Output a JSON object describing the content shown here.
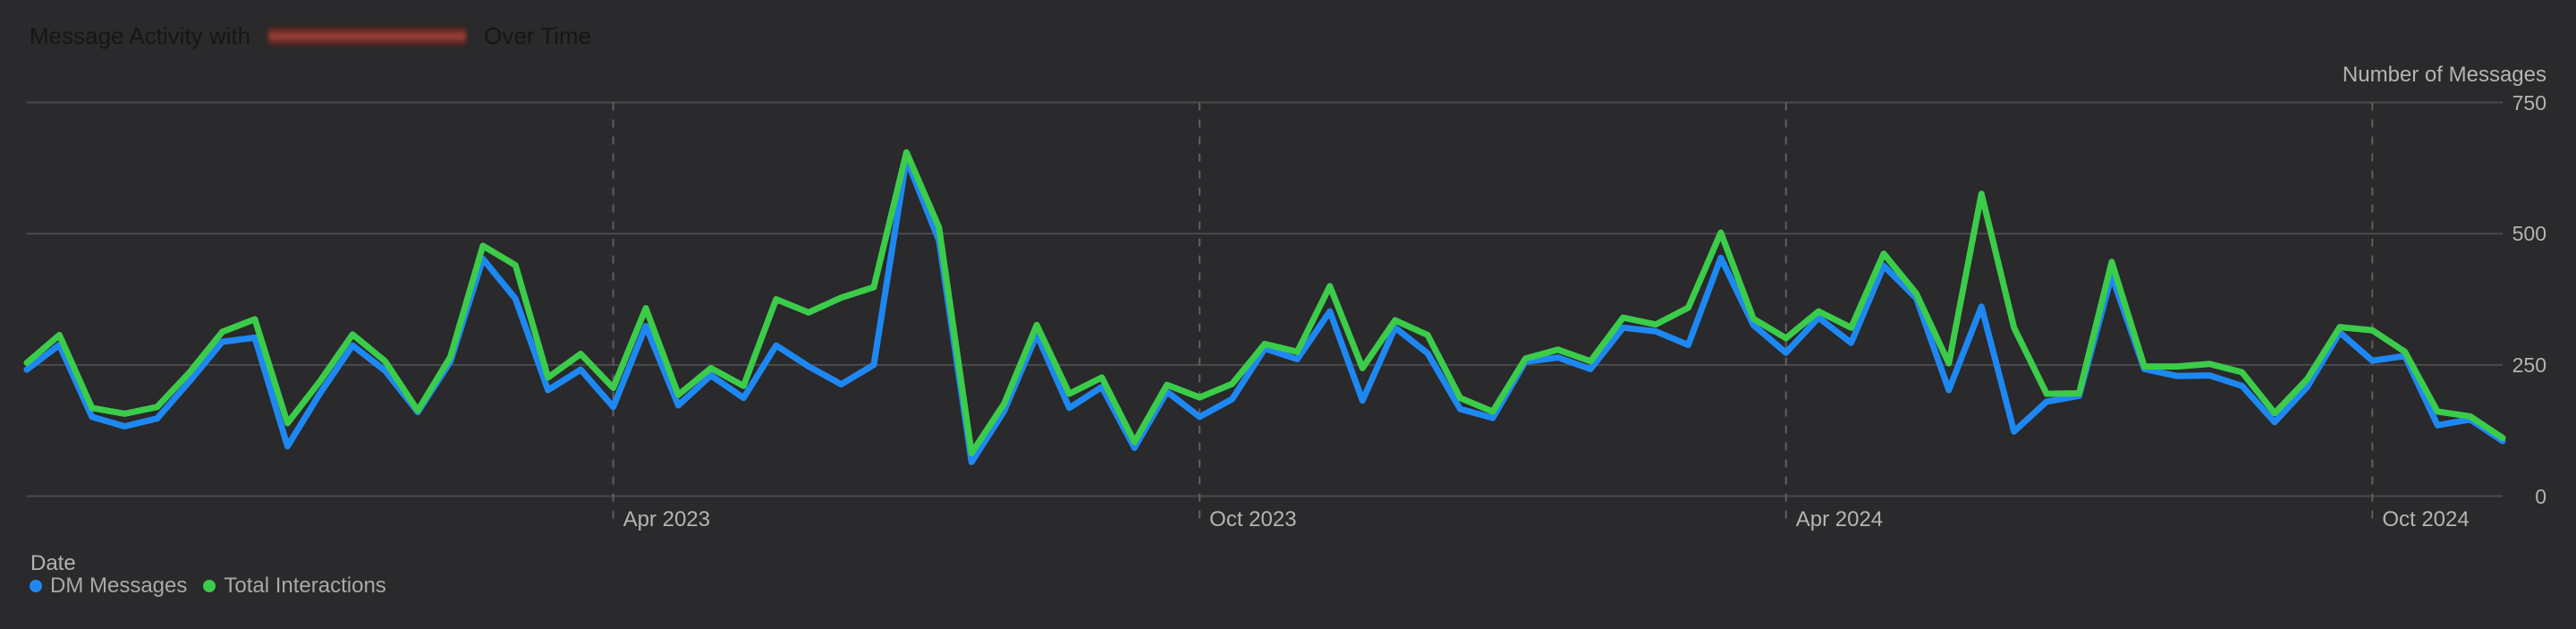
{
  "title": {
    "prefix": "Message Activity with",
    "redacted": true,
    "suffix": "Over Time"
  },
  "y_axis": {
    "label": "Number of Messages",
    "ticks": [
      750,
      500,
      250,
      0
    ],
    "position": "right"
  },
  "x_axis": {
    "label": "Date",
    "ticks": [
      {
        "label": "Apr 2023",
        "index": 18
      },
      {
        "label": "Oct 2023",
        "index": 36
      },
      {
        "label": "Apr 2024",
        "index": 54
      },
      {
        "label": "Oct 2024",
        "index": 72
      }
    ]
  },
  "legend": [
    {
      "label": "DM Messages",
      "color": "#1e88f2"
    },
    {
      "label": "Total Interactions",
      "color": "#3bcc4a"
    }
  ],
  "colors": {
    "background": "#2a292b",
    "gridline": "#4b4b4d",
    "dashed_gridline": "#5f5f61",
    "tick_text": "#b4b4b4",
    "legend_text": "#a9a9a9",
    "title_text": "#161616",
    "redaction_red": "#a0443a",
    "dm_blue": "#1e88f2",
    "interactions_green": "#3bcc4a"
  },
  "chart_data": {
    "type": "line",
    "title": "Message Activity with [redacted] Over Time",
    "xlabel": "Date",
    "ylabel": "Number of Messages",
    "ylim": [
      0,
      750
    ],
    "grid": "horizontal solid lines at 0/250/500/750; dashed vertical lines at Apr/Oct month boundaries",
    "legend_position": "bottom-left",
    "x": [
      "2022-10-01",
      "2022-10-11",
      "2022-10-21",
      "2022-11-01",
      "2022-11-11",
      "2022-11-21",
      "2022-12-01",
      "2022-12-11",
      "2022-12-21",
      "2023-01-01",
      "2023-01-11",
      "2023-01-21",
      "2023-02-01",
      "2023-02-11",
      "2023-02-21",
      "2023-03-01",
      "2023-03-11",
      "2023-03-21",
      "2023-04-01",
      "2023-04-11",
      "2023-04-21",
      "2023-05-01",
      "2023-05-11",
      "2023-05-21",
      "2023-06-01",
      "2023-06-11",
      "2023-06-21",
      "2023-07-01",
      "2023-07-11",
      "2023-07-21",
      "2023-08-01",
      "2023-08-11",
      "2023-08-21",
      "2023-09-01",
      "2023-09-11",
      "2023-09-21",
      "2023-10-01",
      "2023-10-11",
      "2023-10-21",
      "2023-11-01",
      "2023-11-11",
      "2023-11-21",
      "2023-12-01",
      "2023-12-11",
      "2023-12-21",
      "2024-01-01",
      "2024-01-11",
      "2024-01-21",
      "2024-02-01",
      "2024-02-11",
      "2024-02-21",
      "2024-03-01",
      "2024-03-11",
      "2024-03-21",
      "2024-04-01",
      "2024-04-11",
      "2024-04-21",
      "2024-05-01",
      "2024-05-11",
      "2024-05-21",
      "2024-06-01",
      "2024-06-11",
      "2024-06-21",
      "2024-07-01",
      "2024-07-11",
      "2024-07-21",
      "2024-08-01",
      "2024-08-11",
      "2024-08-21",
      "2024-09-01",
      "2024-09-11",
      "2024-09-21",
      "2024-10-01",
      "2024-10-11",
      "2024-10-21",
      "2024-11-01",
      "2024-11-11"
    ],
    "series": [
      {
        "name": "DM Messages",
        "color": "#1e88f2",
        "values": [
          241,
          288,
          151,
          133,
          148,
          219,
          294,
          302,
          95,
          196,
          287,
          239,
          160,
          256,
          452,
          376,
          202,
          241,
          170,
          324,
          173,
          230,
          187,
          287,
          247,
          213,
          250,
          642,
          487,
          65,
          162,
          308,
          168,
          208,
          92,
          199,
          151,
          185,
          281,
          261,
          352,
          182,
          321,
          272,
          166,
          149,
          256,
          264,
          242,
          321,
          314,
          288,
          454,
          326,
          273,
          340,
          292,
          439,
          377,
          202,
          361,
          123,
          180,
          191,
          420,
          242,
          229,
          230,
          210,
          141,
          208,
          312,
          258,
          267,
          135,
          146,
          105
        ]
      },
      {
        "name": "Total Interactions",
        "color": "#3bcc4a",
        "values": [
          254,
          307,
          168,
          157,
          170,
          236,
          313,
          337,
          139,
          219,
          308,
          257,
          163,
          265,
          477,
          440,
          226,
          271,
          206,
          358,
          193,
          244,
          210,
          375,
          350,
          378,
          398,
          655,
          512,
          82,
          176,
          326,
          195,
          226,
          103,
          212,
          188,
          214,
          290,
          275,
          400,
          244,
          335,
          307,
          187,
          161,
          262,
          279,
          257,
          340,
          327,
          359,
          502,
          338,
          301,
          352,
          321,
          462,
          386,
          253,
          576,
          321,
          195,
          196,
          446,
          247,
          247,
          252,
          236,
          158,
          223,
          322,
          316,
          275,
          161,
          152,
          111
        ]
      }
    ]
  }
}
